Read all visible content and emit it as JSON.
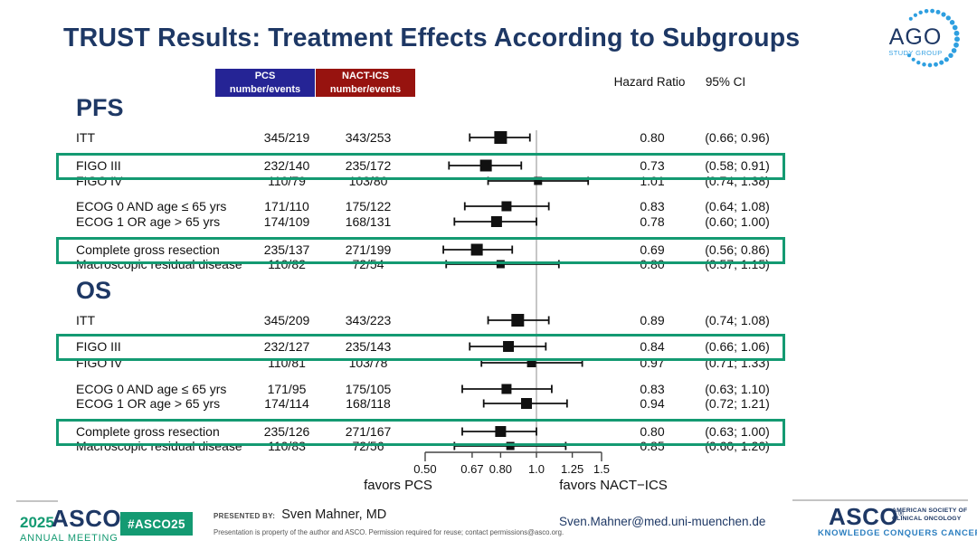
{
  "title": "TRUST Results: Treatment Effects According to Subgroups",
  "ago_logo": {
    "text": "AGO",
    "subtext": "STUDY GROUP"
  },
  "table_headers": {
    "pcs_line1": "PCS",
    "pcs_line2": "number/events",
    "nact_line1": "NACT-ICS",
    "nact_line2": "number/events",
    "hazard_ratio": "Hazard Ratio",
    "ci": "95% CI"
  },
  "chart_data": {
    "type": "forest",
    "x_scale": "log",
    "x_ticks": [
      {
        "label": "0.50",
        "value": 0.5
      },
      {
        "label": "0.67",
        "value": 0.67
      },
      {
        "label": "0.80",
        "value": 0.8
      },
      {
        "label": "1.0",
        "value": 1.0
      },
      {
        "label": "1.25",
        "value": 1.25
      },
      {
        "label": "1.5",
        "value": 1.5
      }
    ],
    "x_range": [
      0.5,
      1.5
    ],
    "reference_line": 1.0,
    "favors_left": "favors PCS",
    "favors_right": "favors NACT−ICS",
    "sections": [
      {
        "label": "PFS",
        "rows": [
          {
            "label": "ITT",
            "pcs": "345/219",
            "nact": "343/253",
            "hr": 0.8,
            "ci_low": 0.66,
            "ci_high": 0.96,
            "hr_label": "0.80",
            "ci_label": "(0.66; 0.96)",
            "highlight": false,
            "marker_size": 14
          },
          {
            "label": "FIGO III",
            "pcs": "232/140",
            "nact": "235/172",
            "hr": 0.73,
            "ci_low": 0.58,
            "ci_high": 0.91,
            "hr_label": "0.73",
            "ci_label": "(0.58; 0.91)",
            "highlight": true,
            "marker_size": 13
          },
          {
            "label": "FIGO IV",
            "pcs": "110/79",
            "nact": "103/80",
            "hr": 1.01,
            "ci_low": 0.74,
            "ci_high": 1.38,
            "hr_label": "1.01",
            "ci_label": "(0.74; 1.38)",
            "highlight": false,
            "marker_size": 9
          },
          {
            "label": "ECOG 0 AND age ≤ 65 yrs",
            "pcs": "171/110",
            "nact": "175/122",
            "hr": 0.83,
            "ci_low": 0.64,
            "ci_high": 1.08,
            "hr_label": "0.83",
            "ci_label": "(0.64; 1.08)",
            "highlight": false,
            "marker_size": 11
          },
          {
            "label": "ECOG 1 OR age > 65 yrs",
            "pcs": "174/109",
            "nact": "168/131",
            "hr": 0.78,
            "ci_low": 0.6,
            "ci_high": 1.0,
            "hr_label": "0.78",
            "ci_label": "(0.60; 1.00)",
            "highlight": false,
            "marker_size": 12
          },
          {
            "label": "Complete gross resection",
            "pcs": "235/137",
            "nact": "271/199",
            "hr": 0.69,
            "ci_low": 0.56,
            "ci_high": 0.86,
            "hr_label": "0.69",
            "ci_label": "(0.56; 0.86)",
            "highlight": true,
            "marker_size": 13
          },
          {
            "label": "Macroscopic residual disease",
            "pcs": "110/82",
            "nact": "72/54",
            "hr": 0.8,
            "ci_low": 0.57,
            "ci_high": 1.15,
            "hr_label": "0.80",
            "ci_label": "(0.57; 1.15)",
            "highlight": false,
            "marker_size": 9
          }
        ]
      },
      {
        "label": "OS",
        "rows": [
          {
            "label": "ITT",
            "pcs": "345/209",
            "nact": "343/223",
            "hr": 0.89,
            "ci_low": 0.74,
            "ci_high": 1.08,
            "hr_label": "0.89",
            "ci_label": "(0.74; 1.08)",
            "highlight": false,
            "marker_size": 14
          },
          {
            "label": "FIGO III",
            "pcs": "232/127",
            "nact": "235/143",
            "hr": 0.84,
            "ci_low": 0.66,
            "ci_high": 1.06,
            "hr_label": "0.84",
            "ci_label": "(0.66; 1.06)",
            "highlight": true,
            "marker_size": 12
          },
          {
            "label": "FIGO IV",
            "pcs": "110/81",
            "nact": "103/78",
            "hr": 0.97,
            "ci_low": 0.71,
            "ci_high": 1.33,
            "hr_label": "0.97",
            "ci_label": "(0.71; 1.33)",
            "highlight": false,
            "marker_size": 10
          },
          {
            "label": "ECOG 0 AND age ≤ 65 yrs",
            "pcs": "171/95",
            "nact": "175/105",
            "hr": 0.83,
            "ci_low": 0.63,
            "ci_high": 1.1,
            "hr_label": "0.83",
            "ci_label": "(0.63; 1.10)",
            "highlight": false,
            "marker_size": 11
          },
          {
            "label": "ECOG 1 OR age > 65 yrs",
            "pcs": "174/114",
            "nact": "168/118",
            "hr": 0.94,
            "ci_low": 0.72,
            "ci_high": 1.21,
            "hr_label": "0.94",
            "ci_label": "(0.72; 1.21)",
            "highlight": false,
            "marker_size": 12
          },
          {
            "label": "Complete gross resection",
            "pcs": "235/126",
            "nact": "271/167",
            "hr": 0.8,
            "ci_low": 0.63,
            "ci_high": 1.0,
            "hr_label": "0.80",
            "ci_label": "(0.63; 1.00)",
            "highlight": true,
            "marker_size": 12
          },
          {
            "label": "Macroscopic residual disease",
            "pcs": "110/83",
            "nact": "72/56",
            "hr": 0.85,
            "ci_low": 0.6,
            "ci_high": 1.2,
            "hr_label": "0.85",
            "ci_label": "(0.60; 1.20)",
            "highlight": false,
            "marker_size": 9
          }
        ]
      }
    ]
  },
  "footer": {
    "year": "2025",
    "asco": "ASCO",
    "annual_meeting": "ANNUAL MEETING",
    "hashtag": "#ASCO25",
    "presented_by_label": "PRESENTED BY:",
    "presenter": "Sven Mahner, MD",
    "disclaimer": "Presentation is property of the author and ASCO. Permission required for reuse; contact permissions@asco.org.",
    "email": "Sven.Mahner@med.uni-muenchen.de",
    "reg_mark": "®",
    "asco_logo": {
      "name": "ASCO",
      "society_line1": "AMERICAN SOCIETY OF",
      "society_line2": "CLINICAL ONCOLOGY",
      "tagline": "KNOWLEDGE CONQUERS CANCER"
    }
  },
  "colors": {
    "navy": "#1e3865",
    "pcs_blue": "#252495",
    "nact_red": "#97130f",
    "highlight_green": "#149a72",
    "asco_green": "#149a72",
    "tagline_blue": "#2c7fc0",
    "logo_dot_blue": "#2e9fe0",
    "reference_line_gray": "#b3b3b3"
  }
}
